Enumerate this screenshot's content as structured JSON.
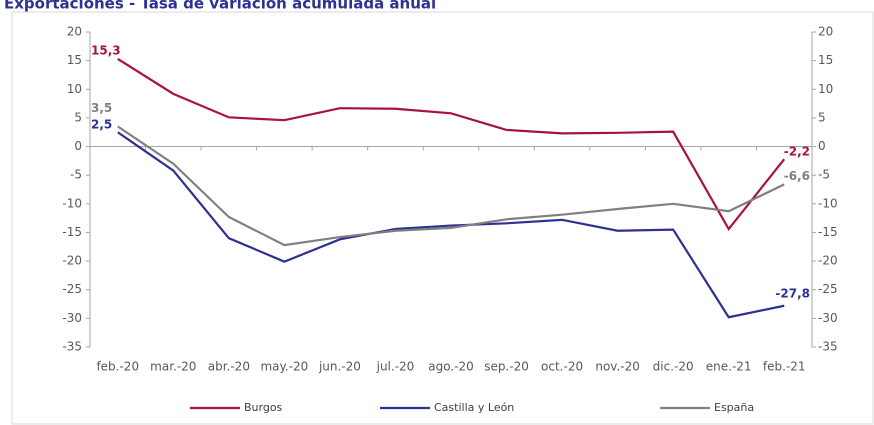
{
  "chart_data": {
    "type": "line",
    "title": "Exportaciones - Tasa de variación acumulada anual",
    "categories": [
      "feb.-20",
      "mar.-20",
      "abr.-20",
      "may.-20",
      "jun.-20",
      "jul.-20",
      "ago.-20",
      "sep.-20",
      "oct.-20",
      "nov.-20",
      "dic.-20",
      "ene.-21",
      "feb.-21"
    ],
    "series": [
      {
        "name": "Burgos",
        "color": "#a8123f",
        "values": [
          15.3,
          9.2,
          5.1,
          4.6,
          6.7,
          6.6,
          5.8,
          2.9,
          2.3,
          2.4,
          2.6,
          -14.4,
          -2.2
        ],
        "value_labels": [
          "15,3",
          null,
          null,
          null,
          null,
          null,
          null,
          null,
          null,
          null,
          null,
          null,
          "-2,2"
        ]
      },
      {
        "name": "Castilla y León",
        "color": "#2e3192",
        "values": [
          2.5,
          -4.2,
          -16.0,
          -20.1,
          -16.2,
          -14.4,
          -13.8,
          -13.4,
          -12.8,
          -14.7,
          -14.5,
          -29.8,
          -27.8
        ],
        "value_labels": [
          "2,5",
          null,
          null,
          null,
          null,
          null,
          null,
          null,
          null,
          null,
          null,
          null,
          "-27,8"
        ]
      },
      {
        "name": "España",
        "color": "#808080",
        "values": [
          3.5,
          -3.0,
          -12.3,
          -17.2,
          -15.8,
          -14.7,
          -14.2,
          -12.7,
          -11.9,
          -10.9,
          -10.0,
          -11.3,
          -6.6
        ],
        "value_labels": [
          "3,5",
          null,
          null,
          null,
          null,
          null,
          null,
          null,
          null,
          null,
          null,
          null,
          "-6,6"
        ]
      }
    ],
    "ylim": [
      -35,
      20
    ],
    "yticks": [
      20,
      15,
      10,
      5,
      0,
      -5,
      -10,
      -15,
      -20,
      -25,
      -30,
      -35
    ],
    "y2lim": [
      -35,
      20
    ],
    "y2ticks": [
      20,
      15,
      10,
      5,
      0,
      -5,
      -10,
      -15,
      -20,
      -25,
      -30,
      -35
    ],
    "legend": "bottom"
  }
}
